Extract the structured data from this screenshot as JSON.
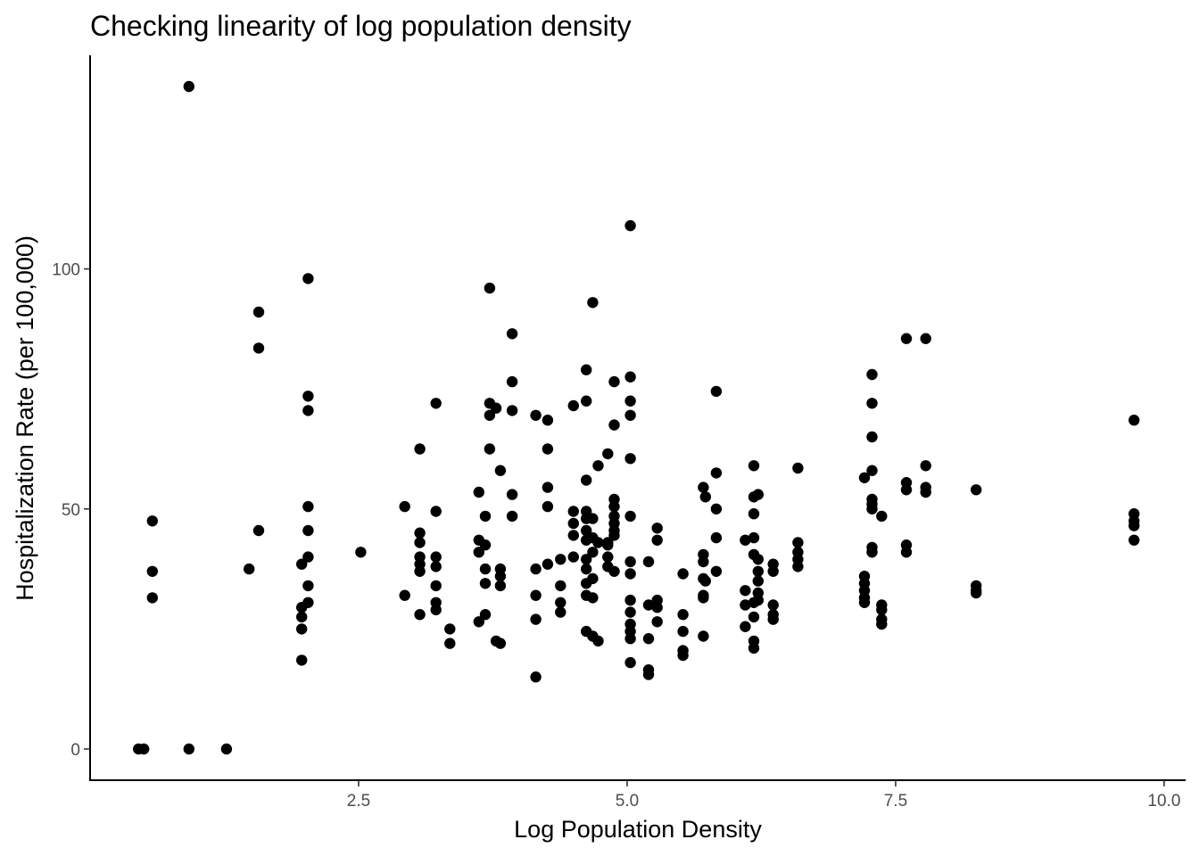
{
  "chart_data": {
    "type": "scatter",
    "title": "Checking linearity of log population density",
    "xlabel": "Log Population Density",
    "ylabel": "Hospitalization Rate (per 100,000)",
    "xlim": [
      0.0,
      10.2
    ],
    "ylim": [
      -6.5,
      144.5
    ],
    "x_ticks": [
      2.5,
      5.0,
      7.5,
      10.0
    ],
    "x_tick_labels": [
      "2.5",
      "5.0",
      "7.5",
      "10.0"
    ],
    "y_ticks": [
      0,
      50,
      100
    ],
    "y_tick_labels": [
      "0",
      "50",
      "100"
    ],
    "grid": false,
    "legend": "none",
    "point_color": "#000000",
    "points": [
      [
        0.45,
        0
      ],
      [
        0.5,
        0
      ],
      [
        0.92,
        0
      ],
      [
        1.27,
        0
      ],
      [
        0.58,
        47.5
      ],
      [
        0.58,
        37.0
      ],
      [
        0.58,
        31.5
      ],
      [
        0.92,
        138.0
      ],
      [
        1.48,
        37.5
      ],
      [
        1.57,
        91.0
      ],
      [
        1.57,
        83.5
      ],
      [
        1.57,
        45.5
      ],
      [
        1.97,
        38.5
      ],
      [
        1.97,
        29.5
      ],
      [
        1.97,
        27.5
      ],
      [
        1.97,
        25.0
      ],
      [
        1.97,
        18.5
      ],
      [
        2.03,
        98.0
      ],
      [
        2.03,
        73.5
      ],
      [
        2.03,
        70.5
      ],
      [
        2.03,
        50.5
      ],
      [
        2.03,
        45.5
      ],
      [
        2.03,
        40.0
      ],
      [
        2.03,
        34.0
      ],
      [
        2.03,
        30.5
      ],
      [
        2.52,
        41.0
      ],
      [
        2.93,
        50.5
      ],
      [
        2.93,
        32.0
      ],
      [
        3.07,
        62.5
      ],
      [
        3.07,
        45.0
      ],
      [
        3.07,
        43.0
      ],
      [
        3.07,
        40.0
      ],
      [
        3.07,
        38.5
      ],
      [
        3.07,
        37.0
      ],
      [
        3.07,
        28.0
      ],
      [
        3.22,
        72.0
      ],
      [
        3.22,
        49.5
      ],
      [
        3.22,
        40.0
      ],
      [
        3.22,
        38.0
      ],
      [
        3.22,
        34.0
      ],
      [
        3.22,
        30.5
      ],
      [
        3.22,
        29.0
      ],
      [
        3.35,
        25.0
      ],
      [
        3.35,
        22.0
      ],
      [
        3.62,
        53.5
      ],
      [
        3.62,
        43.5
      ],
      [
        3.62,
        41.0
      ],
      [
        3.62,
        26.5
      ],
      [
        3.68,
        48.5
      ],
      [
        3.68,
        42.5
      ],
      [
        3.68,
        37.5
      ],
      [
        3.68,
        34.5
      ],
      [
        3.68,
        28.0
      ],
      [
        3.72,
        96.0
      ],
      [
        3.72,
        72.0
      ],
      [
        3.72,
        69.5
      ],
      [
        3.72,
        62.5
      ],
      [
        3.78,
        71.0
      ],
      [
        3.78,
        22.5
      ],
      [
        3.82,
        58.0
      ],
      [
        3.82,
        37.5
      ],
      [
        3.82,
        36.0
      ],
      [
        3.82,
        34.0
      ],
      [
        3.82,
        22.0
      ],
      [
        3.93,
        86.5
      ],
      [
        3.93,
        76.5
      ],
      [
        3.93,
        70.5
      ],
      [
        3.93,
        53.0
      ],
      [
        3.93,
        48.5
      ],
      [
        4.15,
        69.5
      ],
      [
        4.15,
        37.5
      ],
      [
        4.15,
        32.0
      ],
      [
        4.15,
        27.0
      ],
      [
        4.15,
        15.0
      ],
      [
        4.26,
        68.5
      ],
      [
        4.26,
        62.5
      ],
      [
        4.26,
        54.5
      ],
      [
        4.26,
        50.5
      ],
      [
        4.26,
        38.5
      ],
      [
        4.38,
        39.5
      ],
      [
        4.38,
        34.0
      ],
      [
        4.38,
        30.5
      ],
      [
        4.38,
        28.5
      ],
      [
        4.5,
        71.5
      ],
      [
        4.5,
        49.5
      ],
      [
        4.5,
        47.0
      ],
      [
        4.5,
        44.5
      ],
      [
        4.5,
        40.0
      ],
      [
        4.62,
        79.0
      ],
      [
        4.62,
        72.5
      ],
      [
        4.62,
        56.0
      ],
      [
        4.62,
        49.5
      ],
      [
        4.62,
        48.0
      ],
      [
        4.62,
        45.5
      ],
      [
        4.62,
        43.5
      ],
      [
        4.62,
        39.5
      ],
      [
        4.62,
        37.5
      ],
      [
        4.62,
        34.5
      ],
      [
        4.62,
        32.0
      ],
      [
        4.62,
        24.5
      ],
      [
        4.68,
        93.0
      ],
      [
        4.68,
        48.0
      ],
      [
        4.68,
        44.0
      ],
      [
        4.68,
        41.0
      ],
      [
        4.68,
        35.5
      ],
      [
        4.68,
        31.5
      ],
      [
        4.68,
        23.5
      ],
      [
        4.73,
        59.0
      ],
      [
        4.73,
        43.0
      ],
      [
        4.73,
        22.5
      ],
      [
        4.82,
        61.5
      ],
      [
        4.82,
        43.0
      ],
      [
        4.82,
        42.5
      ],
      [
        4.82,
        40.0
      ],
      [
        4.82,
        38.0
      ],
      [
        4.88,
        76.5
      ],
      [
        4.88,
        67.5
      ],
      [
        4.88,
        52.0
      ],
      [
        4.88,
        50.5
      ],
      [
        4.88,
        48.5
      ],
      [
        4.88,
        47.0
      ],
      [
        4.88,
        45.5
      ],
      [
        4.88,
        44.5
      ],
      [
        4.88,
        37.0
      ],
      [
        5.03,
        109.0
      ],
      [
        5.03,
        77.5
      ],
      [
        5.03,
        72.5
      ],
      [
        5.03,
        69.5
      ],
      [
        5.03,
        60.5
      ],
      [
        5.03,
        48.5
      ],
      [
        5.03,
        39.0
      ],
      [
        5.03,
        36.5
      ],
      [
        5.03,
        31.0
      ],
      [
        5.03,
        28.5
      ],
      [
        5.03,
        26.0
      ],
      [
        5.03,
        24.5
      ],
      [
        5.03,
        23.0
      ],
      [
        5.03,
        18.0
      ],
      [
        5.2,
        39.0
      ],
      [
        5.2,
        30.0
      ],
      [
        5.2,
        23.0
      ],
      [
        5.2,
        16.5
      ],
      [
        5.2,
        15.5
      ],
      [
        5.28,
        46.0
      ],
      [
        5.28,
        43.5
      ],
      [
        5.28,
        31.0
      ],
      [
        5.28,
        29.5
      ],
      [
        5.28,
        26.5
      ],
      [
        5.52,
        36.5
      ],
      [
        5.52,
        28.0
      ],
      [
        5.52,
        24.5
      ],
      [
        5.52,
        20.5
      ],
      [
        5.52,
        19.5
      ],
      [
        5.71,
        54.5
      ],
      [
        5.71,
        40.5
      ],
      [
        5.71,
        39.0
      ],
      [
        5.71,
        35.5
      ],
      [
        5.71,
        32.0
      ],
      [
        5.71,
        31.5
      ],
      [
        5.71,
        23.5
      ],
      [
        5.73,
        52.5
      ],
      [
        5.73,
        35.0
      ],
      [
        5.83,
        74.5
      ],
      [
        5.83,
        57.5
      ],
      [
        5.83,
        50.0
      ],
      [
        5.83,
        44.0
      ],
      [
        5.83,
        37.0
      ],
      [
        6.1,
        43.5
      ],
      [
        6.1,
        33.0
      ],
      [
        6.1,
        30.0
      ],
      [
        6.1,
        25.5
      ],
      [
        6.18,
        59.0
      ],
      [
        6.18,
        52.5
      ],
      [
        6.18,
        49.0
      ],
      [
        6.18,
        44.0
      ],
      [
        6.18,
        40.5
      ],
      [
        6.18,
        30.5
      ],
      [
        6.18,
        27.5
      ],
      [
        6.18,
        22.5
      ],
      [
        6.18,
        21.0
      ],
      [
        6.22,
        53.0
      ],
      [
        6.22,
        39.5
      ],
      [
        6.22,
        37.0
      ],
      [
        6.22,
        35.0
      ],
      [
        6.22,
        32.5
      ],
      [
        6.22,
        31.0
      ],
      [
        6.36,
        38.5
      ],
      [
        6.36,
        37.0
      ],
      [
        6.36,
        30.0
      ],
      [
        6.36,
        28.0
      ],
      [
        6.36,
        27.0
      ],
      [
        6.59,
        58.5
      ],
      [
        6.59,
        43.0
      ],
      [
        6.59,
        41.0
      ],
      [
        6.59,
        39.5
      ],
      [
        6.59,
        38.0
      ],
      [
        7.21,
        56.5
      ],
      [
        7.21,
        36.0
      ],
      [
        7.21,
        34.5
      ],
      [
        7.21,
        33.0
      ],
      [
        7.21,
        31.5
      ],
      [
        7.21,
        30.5
      ],
      [
        7.28,
        78.0
      ],
      [
        7.28,
        72.0
      ],
      [
        7.28,
        65.0
      ],
      [
        7.28,
        58.0
      ],
      [
        7.28,
        52.0
      ],
      [
        7.28,
        51.0
      ],
      [
        7.28,
        50.0
      ],
      [
        7.28,
        42.0
      ],
      [
        7.28,
        41.0
      ],
      [
        7.37,
        48.5
      ],
      [
        7.37,
        30.0
      ],
      [
        7.37,
        29.0
      ],
      [
        7.37,
        27.0
      ],
      [
        7.37,
        26.0
      ],
      [
        7.6,
        85.5
      ],
      [
        7.6,
        55.5
      ],
      [
        7.6,
        54.0
      ],
      [
        7.6,
        42.5
      ],
      [
        7.6,
        41.0
      ],
      [
        7.78,
        85.5
      ],
      [
        7.78,
        59.0
      ],
      [
        7.78,
        54.5
      ],
      [
        7.78,
        53.5
      ],
      [
        8.25,
        54.0
      ],
      [
        8.25,
        34.0
      ],
      [
        8.25,
        33.0
      ],
      [
        8.25,
        32.5
      ],
      [
        9.72,
        68.5
      ],
      [
        9.72,
        49.0
      ],
      [
        9.72,
        47.5
      ],
      [
        9.72,
        46.5
      ],
      [
        9.72,
        43.5
      ]
    ]
  }
}
